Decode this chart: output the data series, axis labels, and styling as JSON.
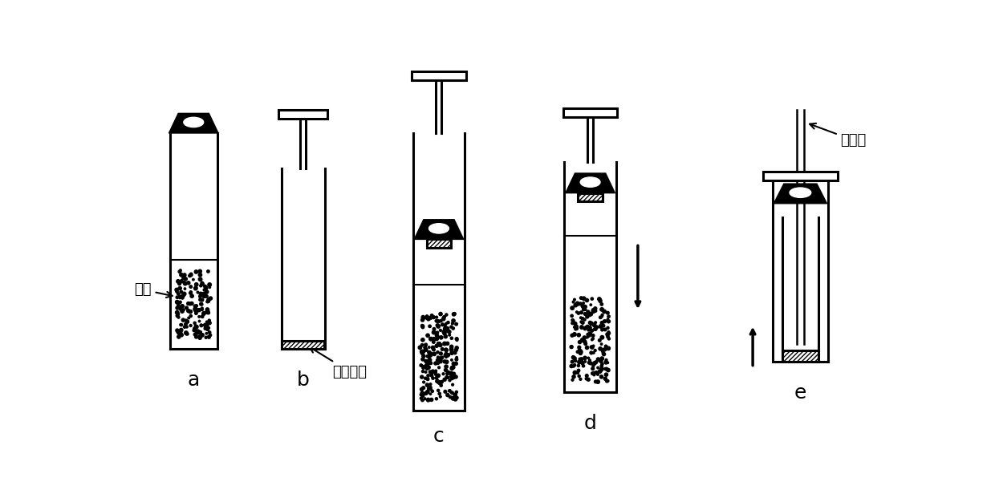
{
  "bg_color": "#ffffff",
  "line_color": "#000000",
  "label_a": "a",
  "label_b": "b",
  "label_c": "c",
  "label_d": "d",
  "label_e": "e",
  "text_yangpin": "样品",
  "text_guolvban": "过滤筛板",
  "text_quyangzhen": "取样针",
  "figsize": [
    12.4,
    6.26
  ],
  "dpi": 100
}
